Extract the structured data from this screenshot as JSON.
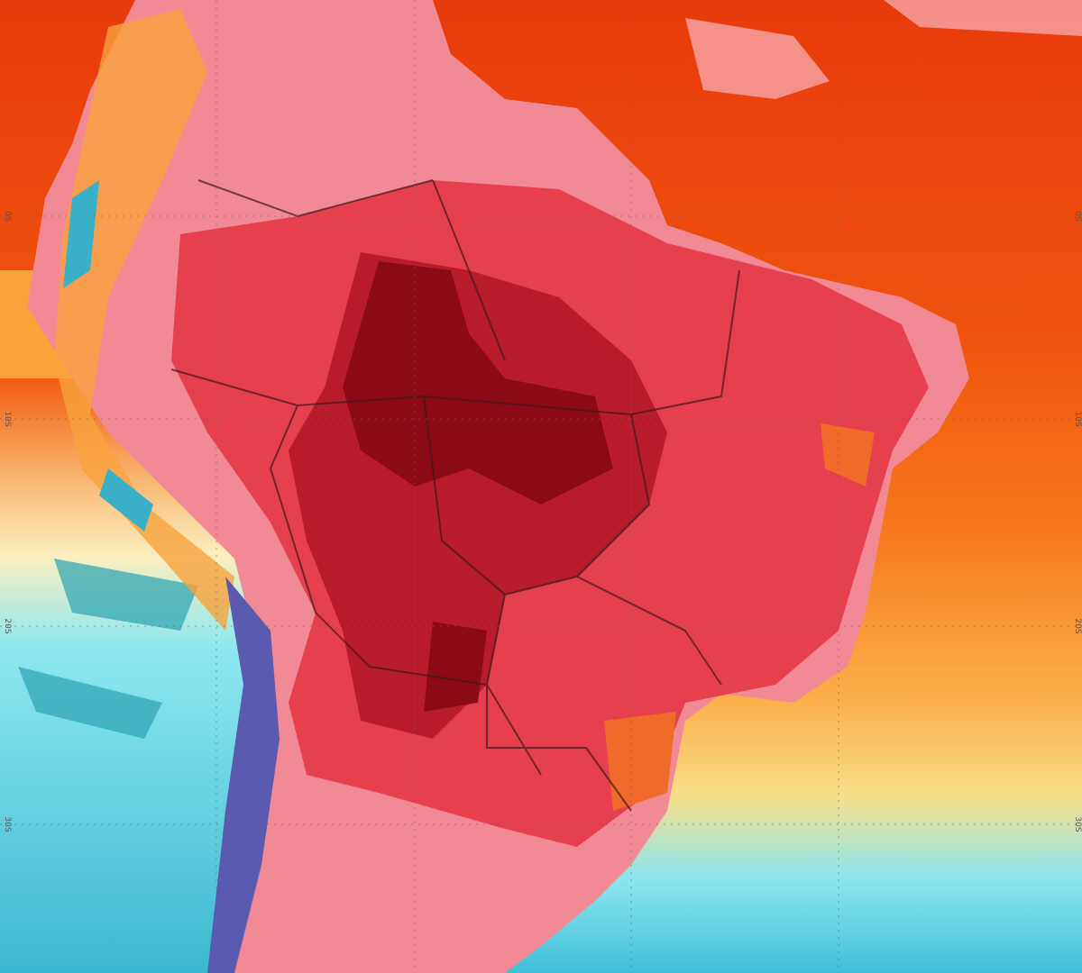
{
  "map": {
    "lat_labels_left": [
      "0S",
      "10S",
      "20S",
      "30S"
    ],
    "lat_labels_right": [
      "0S",
      "10S",
      "20S",
      "30S"
    ]
  }
}
